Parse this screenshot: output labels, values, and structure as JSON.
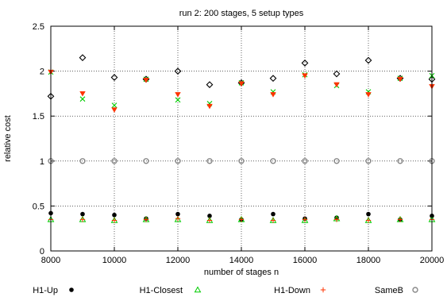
{
  "chart_data": {
    "type": "scatter",
    "title": "run 2: 200 stages, 5 setup types",
    "xlabel": "number of stages n",
    "ylabel": "relative cost",
    "xlim": [
      8000,
      20000
    ],
    "ylim": [
      0,
      2.5
    ],
    "grid": true,
    "legend_position": "bottom",
    "x_ticks": [
      "8000",
      "10000",
      "12000",
      "14000",
      "16000",
      "18000",
      "20000"
    ],
    "y_ticks": [
      "0",
      "0.5",
      "1",
      "1.5",
      "2",
      "2.5"
    ],
    "x": [
      8000,
      9000,
      10000,
      11000,
      12000,
      13000,
      14000,
      15000,
      16000,
      17000,
      18000,
      19000,
      20000
    ],
    "series": [
      {
        "name": "H1-Up",
        "marker": "filled-circle",
        "color": "#000000",
        "values": [
          0.42,
          0.41,
          0.4,
          0.36,
          0.41,
          0.39,
          0.35,
          0.41,
          0.36,
          0.37,
          0.41,
          0.35,
          0.39
        ]
      },
      {
        "name": "H1-Closest",
        "marker": "triangle",
        "color": "#00cc00",
        "values": [
          0.35,
          0.35,
          0.34,
          0.35,
          0.35,
          0.34,
          0.35,
          0.34,
          0.34,
          0.36,
          0.34,
          0.35,
          0.35
        ]
      },
      {
        "name": "H1-Down",
        "marker": "plus",
        "color": "#ff3300",
        "values": [
          0.35,
          0.35,
          0.34,
          0.35,
          0.36,
          0.34,
          0.35,
          0.34,
          0.35,
          0.35,
          0.34,
          0.35,
          0.35
        ]
      },
      {
        "name": "SameB",
        "marker": "hollow-circle",
        "color": "#888888",
        "values": [
          1,
          1,
          1,
          1,
          1,
          1,
          1,
          1,
          1,
          1,
          1,
          1,
          1
        ]
      },
      {
        "name": "",
        "marker": "diamond",
        "color": "#000000",
        "values": [
          1.72,
          2.15,
          1.93,
          1.91,
          2.0,
          1.85,
          1.87,
          1.92,
          2.09,
          1.97,
          2.12,
          1.92,
          1.91
        ]
      },
      {
        "name": "",
        "marker": "cross",
        "color": "#00cc00",
        "values": [
          1.99,
          1.69,
          1.62,
          1.91,
          1.68,
          1.64,
          1.87,
          1.77,
          1.96,
          1.84,
          1.77,
          1.92,
          1.95
        ]
      },
      {
        "name": "",
        "marker": "triangle-down",
        "color": "#ff3300",
        "values": [
          1.99,
          1.75,
          1.57,
          1.9,
          1.74,
          1.61,
          1.86,
          1.74,
          1.95,
          1.85,
          1.74,
          1.91,
          1.83
        ]
      }
    ]
  }
}
